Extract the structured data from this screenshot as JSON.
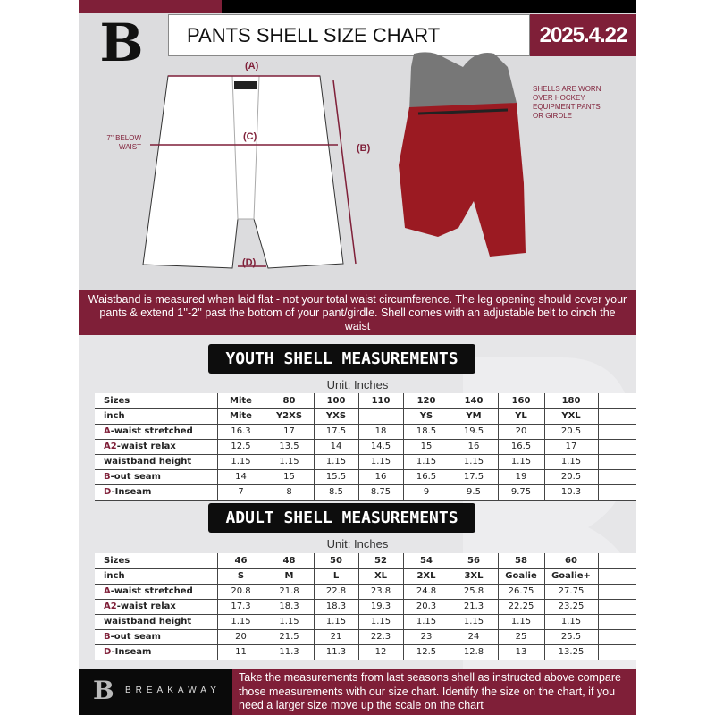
{
  "header": {
    "logo": "B",
    "title": "PANTS SHELL SIZE CHART",
    "date": "2025.4.22"
  },
  "diagram": {
    "label_a": "(A)",
    "label_b": "(B)",
    "label_c": "(C)",
    "label_d": "(D)",
    "below_waist": "7'' BELOW\nWAIST"
  },
  "photo_note": "SHELLS ARE WORN\nOVER HOCKEY\nEQUIPMENT PANTS\nOR GIRDLE",
  "banner": "Waistband is measured when laid flat - not your total waist circumference. The leg opening should cover your pants & extend 1''-2'' past the bottom of your pant/girdle. Shell comes with an adjustable belt to cinch the waist",
  "youth": {
    "heading": "YOUTH SHELL MEASUREMENTS",
    "unit": "Unit: Inches",
    "rows": [
      {
        "mark": "",
        "label": "Sizes",
        "values": [
          "Mite",
          "80",
          "100",
          "110",
          "120",
          "140",
          "160",
          "180"
        ]
      },
      {
        "mark": "",
        "label": "inch",
        "values": [
          "Mite",
          "Y2XS",
          "YXS",
          "",
          "YS",
          "YM",
          "YL",
          "YXL"
        ]
      },
      {
        "mark": "A",
        "label": "-waist stretched",
        "values": [
          "16.3",
          "17",
          "17.5",
          "18",
          "18.5",
          "19.5",
          "20",
          "20.5"
        ]
      },
      {
        "mark": "A2",
        "label": "-waist relax",
        "values": [
          "12.5",
          "13.5",
          "14",
          "14.5",
          "15",
          "16",
          "16.5",
          "17"
        ]
      },
      {
        "mark": "",
        "label": "waistband height",
        "values": [
          "1.15",
          "1.15",
          "1.15",
          "1.15",
          "1.15",
          "1.15",
          "1.15",
          "1.15"
        ]
      },
      {
        "mark": "B",
        "label": "-out seam",
        "values": [
          "14",
          "15",
          "15.5",
          "16",
          "16.5",
          "17.5",
          "19",
          "20.5"
        ]
      },
      {
        "mark": "D",
        "label": "-Inseam",
        "values": [
          "7",
          "8",
          "8.5",
          "8.75",
          "9",
          "9.5",
          "9.75",
          "10.3"
        ]
      }
    ]
  },
  "adult": {
    "heading": "ADULT SHELL MEASUREMENTS",
    "unit": "Unit: Inches",
    "rows": [
      {
        "mark": "",
        "label": "Sizes",
        "values": [
          "46",
          "48",
          "50",
          "52",
          "54",
          "56",
          "58",
          "60"
        ]
      },
      {
        "mark": "",
        "label": "inch",
        "values": [
          "S",
          "M",
          "L",
          "XL",
          "2XL",
          "3XL",
          "Goalie",
          "Goalie+"
        ]
      },
      {
        "mark": "A",
        "label": "-waist stretched",
        "values": [
          "20.8",
          "21.8",
          "22.8",
          "23.8",
          "24.8",
          "25.8",
          "26.75",
          "27.75"
        ]
      },
      {
        "mark": "A2",
        "label": "-waist relax",
        "values": [
          "17.3",
          "18.3",
          "18.3",
          "19.3",
          "20.3",
          "21.3",
          "22.25",
          "23.25"
        ]
      },
      {
        "mark": "",
        "label": "waistband height",
        "values": [
          "1.15",
          "1.15",
          "1.15",
          "1.15",
          "1.15",
          "1.15",
          "1.15",
          "1.15"
        ]
      },
      {
        "mark": "B",
        "label": "-out seam",
        "values": [
          "20",
          "21.5",
          "21",
          "22.3",
          "23",
          "24",
          "25",
          "25.5"
        ]
      },
      {
        "mark": "D",
        "label": "-Inseam",
        "values": [
          "11",
          "11.3",
          "11.3",
          "12",
          "12.5",
          "12.8",
          "13",
          "13.25"
        ]
      }
    ]
  },
  "footer": {
    "logo": "B",
    "brand": "BREAKAWAY",
    "text": "Take the measurements from last seasons shell as instructed above compare those measurements  with our size chart. Identify the size on the chart, if you need a larger size move up the scale on the chart"
  },
  "colors": {
    "brand": "#7f1f38",
    "dark": "#0d0d0d",
    "background": "#dcdcde"
  }
}
